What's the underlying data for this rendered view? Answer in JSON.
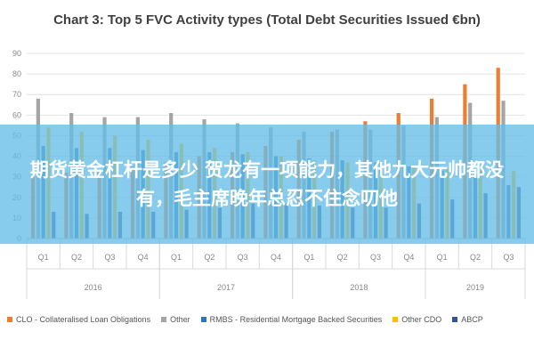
{
  "banner": {
    "text": "期货黄金杠杆是多少 贺龙有一项能力，其他九大元帅都没有，毛主席晚年总忍不住念叨他"
  },
  "colors": {
    "clo": "#ED7D31",
    "other": "#A5A5A5",
    "rmbs": "#2E75B6",
    "other_cdo": "#FFC000",
    "abcp": "#2F5597",
    "grid": "#e4e4e4",
    "axis_text": "#888888"
  },
  "chart_data": {
    "type": "bar",
    "title": "Chart 3: Top 5 FVC Activity types (Total Debt Securities Issued €bn)",
    "xlabel": "",
    "ylabel": "",
    "ylim": [
      0,
      90
    ],
    "yticks": [
      0,
      10,
      20,
      30,
      40,
      50,
      60,
      70,
      80,
      90
    ],
    "grid": true,
    "legend_position": "bottom",
    "categories": [
      "Q1",
      "Q2",
      "Q3",
      "Q4",
      "Q1",
      "Q2",
      "Q3",
      "Q4",
      "Q1",
      "Q2",
      "Q3",
      "Q4",
      "Q1",
      "Q2",
      "Q3"
    ],
    "groups": [
      {
        "label": "2016",
        "start": 0,
        "end": 3
      },
      {
        "label": "2017",
        "start": 4,
        "end": 7
      },
      {
        "label": "2018",
        "start": 8,
        "end": 11
      },
      {
        "label": "2019",
        "start": 12,
        "end": 14
      }
    ],
    "series": [
      {
        "name": "CLO - Collateralised Loan Obligations",
        "color_key": "clo",
        "values": [
          30,
          32,
          33,
          35,
          37,
          40,
          42,
          45,
          48,
          52,
          57,
          61,
          68,
          75,
          83
        ]
      },
      {
        "name": "Other",
        "color_key": "other",
        "values": [
          68,
          61,
          59,
          59,
          61,
          58,
          56,
          54,
          52,
          53,
          53,
          55,
          59,
          66,
          67
        ]
      },
      {
        "name": "RMBS - Residential Mortgage Backed Securities",
        "color_key": "rmbs",
        "values": [
          45,
          44,
          44,
          43,
          42,
          42,
          41,
          40,
          39,
          38,
          37,
          35,
          33,
          31,
          26
        ]
      },
      {
        "name": "Other CDO",
        "color_key": "other_cdo",
        "values": [
          54,
          52,
          50,
          48,
          46,
          44,
          42,
          40,
          38,
          37,
          36,
          35,
          34,
          33,
          33
        ]
      },
      {
        "name": "ABCP",
        "color_key": "abcp",
        "values": [
          13,
          12,
          13,
          13,
          14,
          15,
          17,
          17,
          16,
          15,
          15,
          17,
          19,
          22,
          25
        ]
      }
    ]
  }
}
